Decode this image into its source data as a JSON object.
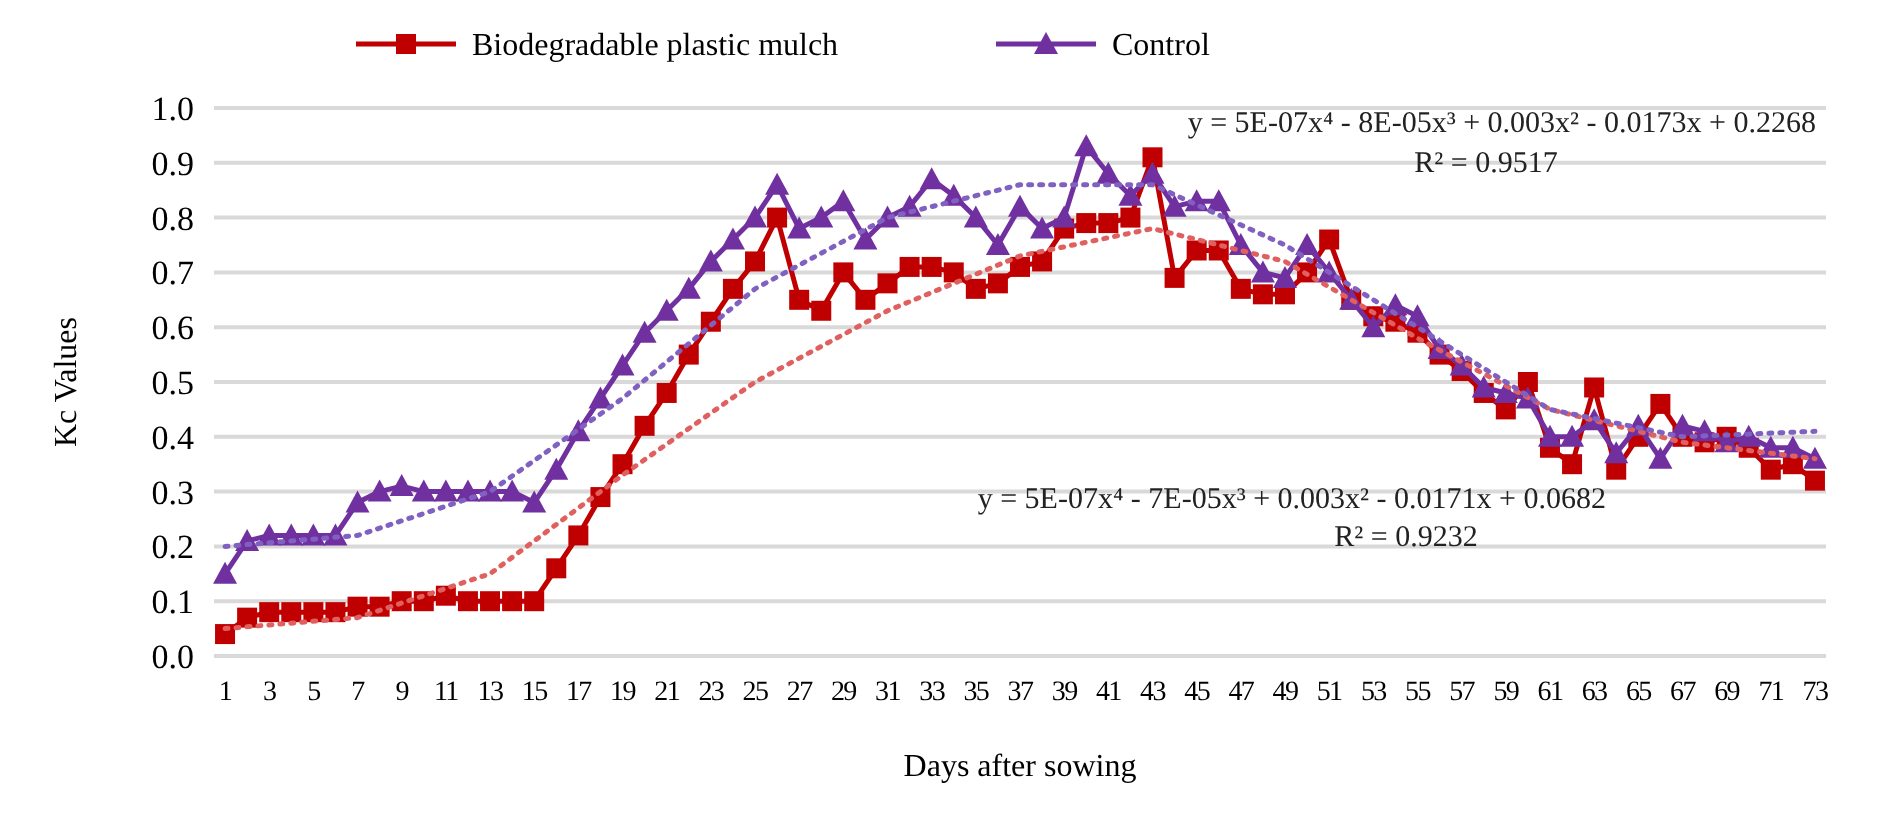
{
  "chart_data": {
    "type": "line",
    "xlabel": "Days after sowing",
    "ylabel": "Kc Values",
    "x": [
      1,
      2,
      3,
      4,
      5,
      6,
      7,
      8,
      9,
      10,
      11,
      12,
      13,
      14,
      15,
      16,
      17,
      18,
      19,
      20,
      21,
      22,
      23,
      24,
      25,
      26,
      27,
      28,
      29,
      30,
      31,
      32,
      33,
      34,
      35,
      36,
      37,
      38,
      39,
      40,
      41,
      42,
      43,
      44,
      45,
      46,
      47,
      48,
      49,
      50,
      51,
      52,
      53,
      54,
      55,
      56,
      57,
      58,
      59,
      60,
      61,
      62,
      63,
      64,
      65,
      66,
      67,
      68,
      69,
      70,
      71,
      72,
      73
    ],
    "xlim": [
      0.5,
      73.5
    ],
    "xticks": [
      1,
      3,
      5,
      7,
      9,
      11,
      13,
      15,
      17,
      19,
      21,
      23,
      25,
      27,
      29,
      31,
      33,
      35,
      37,
      39,
      41,
      43,
      45,
      47,
      49,
      51,
      53,
      55,
      57,
      59,
      61,
      63,
      65,
      67,
      69,
      71,
      73
    ],
    "ylim": [
      0,
      1
    ],
    "yticks": [
      {
        "value": 0,
        "label": "0.0"
      },
      {
        "value": 0.1,
        "label": "0.1"
      },
      {
        "value": 0.2,
        "label": "0.2"
      },
      {
        "value": 0.3,
        "label": "0.3"
      },
      {
        "value": 0.4,
        "label": "0.4"
      },
      {
        "value": 0.5,
        "label": "0.5"
      },
      {
        "value": 0.6,
        "label": "0.6"
      },
      {
        "value": 0.7,
        "label": "0.7"
      },
      {
        "value": 0.8,
        "label": "0.8"
      },
      {
        "value": 0.9,
        "label": "0.9"
      },
      {
        "value": 1,
        "label": "1.0"
      }
    ],
    "grid": "y",
    "legend": "top",
    "series": [
      {
        "name": "Biodegradable plastic mulch",
        "color": "#c00000",
        "marker": "square",
        "line_style": "solid",
        "values": [
          0.04,
          0.07,
          0.08,
          0.08,
          0.08,
          0.08,
          0.09,
          0.09,
          0.1,
          0.1,
          0.11,
          0.1,
          0.1,
          0.1,
          0.1,
          0.16,
          0.22,
          0.29,
          0.35,
          0.42,
          0.48,
          0.55,
          0.61,
          0.67,
          0.72,
          0.8,
          0.65,
          0.63,
          0.7,
          0.65,
          0.68,
          0.71,
          0.71,
          0.7,
          0.67,
          0.68,
          0.71,
          0.72,
          0.78,
          0.79,
          0.79,
          0.8,
          0.91,
          0.69,
          0.74,
          0.74,
          0.67,
          0.66,
          0.66,
          0.7,
          0.76,
          0.65,
          0.62,
          0.61,
          0.59,
          0.55,
          0.52,
          0.48,
          0.45,
          0.5,
          0.38,
          0.35,
          0.49,
          0.34,
          0.4,
          0.46,
          0.4,
          0.39,
          0.4,
          0.38,
          0.34,
          0.35,
          0.32
        ]
      },
      {
        "name": "Control",
        "color": "#7030a0",
        "marker": "triangle",
        "line_style": "solid",
        "values": [
          0.15,
          0.21,
          0.22,
          0.22,
          0.22,
          0.22,
          0.28,
          0.3,
          0.31,
          0.3,
          0.3,
          0.3,
          0.3,
          0.3,
          0.28,
          0.34,
          0.41,
          0.47,
          0.53,
          0.59,
          0.63,
          0.67,
          0.72,
          0.76,
          0.8,
          0.86,
          0.78,
          0.8,
          0.83,
          0.76,
          0.8,
          0.82,
          0.87,
          0.84,
          0.8,
          0.75,
          0.82,
          0.78,
          0.8,
          0.93,
          0.88,
          0.84,
          0.88,
          0.82,
          0.83,
          0.83,
          0.75,
          0.7,
          0.69,
          0.75,
          0.7,
          0.65,
          0.6,
          0.64,
          0.62,
          0.56,
          0.53,
          0.49,
          0.48,
          0.47,
          0.4,
          0.4,
          0.43,
          0.37,
          0.42,
          0.36,
          0.42,
          0.41,
          0.39,
          0.4,
          0.38,
          0.38,
          0.36
        ]
      },
      {
        "color": "#e06060",
        "marker": "none",
        "line_style": "dotted",
        "x": [
          1,
          7,
          13,
          19,
          25,
          31,
          37,
          43,
          49,
          55,
          61,
          67,
          73
        ],
        "values": [
          0.05,
          0.07,
          0.15,
          0.33,
          0.5,
          0.63,
          0.73,
          0.78,
          0.72,
          0.58,
          0.45,
          0.39,
          0.36
        ]
      },
      {
        "color": "#8060c0",
        "marker": "none",
        "line_style": "dotted",
        "x": [
          1,
          7,
          13,
          19,
          25,
          31,
          37,
          43,
          49,
          55,
          61,
          67,
          73
        ],
        "values": [
          0.2,
          0.22,
          0.3,
          0.47,
          0.67,
          0.8,
          0.86,
          0.86,
          0.75,
          0.6,
          0.45,
          0.4,
          0.41
        ]
      }
    ],
    "annotations": [
      "y = 5E-07x⁴ - 8E-05x³ + 0.003x² - 0.0173x + 0.2268",
      "R² = 0.9517",
      "y = 5E-07x⁴ - 7E-05x³ + 0.003x² - 0.0171x + 0.0682",
      "R² = 0.9232"
    ]
  }
}
